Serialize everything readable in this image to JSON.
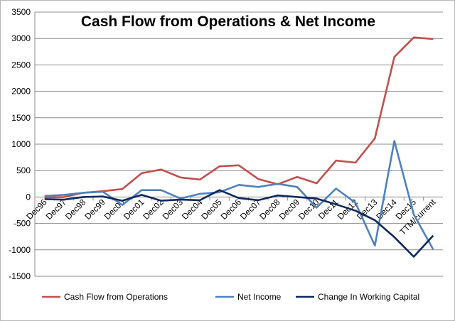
{
  "chart_data": {
    "type": "line",
    "title": "Cash Flow from Operations & Net Income",
    "xlabel": "",
    "ylabel": "",
    "ylim": [
      -1500,
      3500
    ],
    "yticks": [
      -1500,
      -1000,
      -500,
      0,
      500,
      1000,
      1500,
      2000,
      2500,
      3000,
      3500
    ],
    "grid": true,
    "legend_position": "bottom",
    "categories": [
      "Dec96",
      "Dec97",
      "Dec98",
      "Dec99",
      "Dec00",
      "Dec01",
      "Dec02",
      "Dec03",
      "Dec04",
      "Dec05",
      "Dec06",
      "Dec07",
      "Dec08",
      "Dec09",
      "Dec10",
      "Dec11",
      "Dec12",
      "Dec13",
      "Dec14",
      "Dec15",
      "TTM/current"
    ],
    "series": [
      {
        "name": "Cash Flow from Operations",
        "color": "#c0504d",
        "values": [
          -10,
          0,
          80,
          110,
          150,
          450,
          520,
          370,
          330,
          580,
          600,
          340,
          240,
          380,
          260,
          690,
          650,
          1110,
          2650,
          3020,
          2990
        ]
      },
      {
        "name": "Net Income",
        "color": "#4f81bd",
        "values": [
          20,
          40,
          80,
          100,
          -150,
          130,
          130,
          -30,
          60,
          90,
          230,
          190,
          250,
          190,
          -200,
          160,
          -110,
          -920,
          1060,
          -330,
          -990
        ]
      },
      {
        "name": "Change In Working Capital",
        "color": "#0e2a5c",
        "values": [
          -40,
          -50,
          0,
          10,
          -70,
          40,
          -70,
          -50,
          -60,
          130,
          -20,
          -60,
          30,
          0,
          -30,
          -140,
          -260,
          -440,
          -760,
          -1130,
          -730
        ]
      }
    ]
  }
}
